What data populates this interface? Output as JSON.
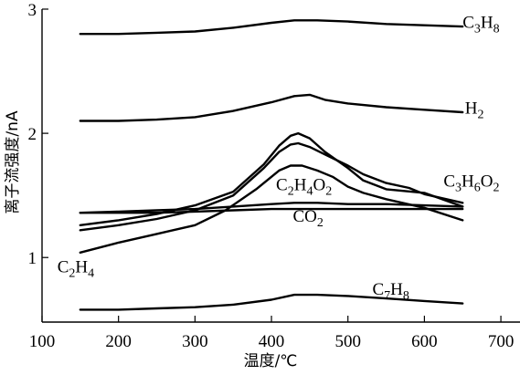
{
  "chart_data": {
    "type": "line",
    "xlabel": "温度/℃",
    "ylabel": "离子流强度/nA",
    "xlim": [
      100,
      725
    ],
    "ylim": [
      0.48,
      3.0
    ],
    "xticks": [
      100,
      200,
      300,
      400,
      500,
      600,
      700
    ],
    "yticks": [
      1,
      2,
      3
    ],
    "series": [
      {
        "name": "C3H8",
        "label_parts": [
          [
            "C",
            ""
          ],
          [
            "3",
            "sub"
          ],
          [
            "H",
            ""
          ],
          [
            "8",
            "sub"
          ]
        ],
        "points": [
          [
            150,
            2.8
          ],
          [
            200,
            2.8
          ],
          [
            250,
            2.81
          ],
          [
            300,
            2.82
          ],
          [
            350,
            2.85
          ],
          [
            400,
            2.89
          ],
          [
            430,
            2.91
          ],
          [
            460,
            2.91
          ],
          [
            500,
            2.9
          ],
          [
            550,
            2.88
          ],
          [
            600,
            2.87
          ],
          [
            650,
            2.86
          ]
        ]
      },
      {
        "name": "H2",
        "label_parts": [
          [
            "H",
            ""
          ],
          [
            "2",
            "sub"
          ]
        ],
        "points": [
          [
            150,
            2.1
          ],
          [
            200,
            2.1
          ],
          [
            250,
            2.11
          ],
          [
            300,
            2.13
          ],
          [
            350,
            2.18
          ],
          [
            400,
            2.25
          ],
          [
            430,
            2.3
          ],
          [
            450,
            2.31
          ],
          [
            470,
            2.27
          ],
          [
            500,
            2.24
          ],
          [
            550,
            2.21
          ],
          [
            600,
            2.19
          ],
          [
            650,
            2.17
          ]
        ]
      },
      {
        "name": "C2H4O2",
        "label_parts": [
          [
            "C",
            ""
          ],
          [
            "2",
            "sub"
          ],
          [
            "H",
            ""
          ],
          [
            "4",
            "sub"
          ],
          [
            "O",
            ""
          ],
          [
            "2",
            "sub"
          ]
        ],
        "points": [
          [
            150,
            1.26
          ],
          [
            200,
            1.3
          ],
          [
            250,
            1.35
          ],
          [
            300,
            1.42
          ],
          [
            350,
            1.53
          ],
          [
            390,
            1.75
          ],
          [
            410,
            1.9
          ],
          [
            425,
            1.98
          ],
          [
            435,
            2.0
          ],
          [
            450,
            1.96
          ],
          [
            470,
            1.85
          ],
          [
            500,
            1.72
          ],
          [
            520,
            1.62
          ],
          [
            550,
            1.55
          ],
          [
            600,
            1.52
          ],
          [
            650,
            1.41
          ]
        ]
      },
      {
        "name": "C2H4O2-b",
        "label_parts": [],
        "points": [
          [
            150,
            1.22
          ],
          [
            200,
            1.26
          ],
          [
            250,
            1.31
          ],
          [
            300,
            1.38
          ],
          [
            350,
            1.5
          ],
          [
            390,
            1.72
          ],
          [
            410,
            1.85
          ],
          [
            425,
            1.91
          ],
          [
            435,
            1.92
          ],
          [
            450,
            1.89
          ],
          [
            470,
            1.83
          ],
          [
            500,
            1.74
          ],
          [
            520,
            1.67
          ],
          [
            550,
            1.6
          ],
          [
            580,
            1.56
          ],
          [
            600,
            1.51
          ],
          [
            650,
            1.44
          ]
        ]
      },
      {
        "name": "C3H6O2",
        "label_parts": [
          [
            "C",
            ""
          ],
          [
            "3",
            "sub"
          ],
          [
            "H",
            ""
          ],
          [
            "6",
            "sub"
          ],
          [
            "O",
            ""
          ],
          [
            "2",
            "sub"
          ]
        ],
        "points": [
          [
            150,
            1.04
          ],
          [
            200,
            1.12
          ],
          [
            250,
            1.19
          ],
          [
            300,
            1.26
          ],
          [
            340,
            1.38
          ],
          [
            380,
            1.55
          ],
          [
            410,
            1.7
          ],
          [
            425,
            1.74
          ],
          [
            440,
            1.74
          ],
          [
            460,
            1.7
          ],
          [
            480,
            1.65
          ],
          [
            500,
            1.57
          ],
          [
            520,
            1.52
          ],
          [
            550,
            1.47
          ],
          [
            600,
            1.4
          ],
          [
            650,
            1.3
          ]
        ]
      },
      {
        "name": "CO2",
        "label_parts": [
          [
            "CO",
            ""
          ],
          [
            "2",
            "sub"
          ]
        ],
        "points": [
          [
            150,
            1.36
          ],
          [
            200,
            1.37
          ],
          [
            250,
            1.38
          ],
          [
            300,
            1.39
          ],
          [
            350,
            1.41
          ],
          [
            400,
            1.43
          ],
          [
            430,
            1.44
          ],
          [
            460,
            1.44
          ],
          [
            500,
            1.43
          ],
          [
            550,
            1.43
          ],
          [
            600,
            1.42
          ],
          [
            650,
            1.41
          ]
        ]
      },
      {
        "name": "C2H4",
        "label_parts": [],
        "points": [
          [
            150,
            1.36
          ],
          [
            200,
            1.36
          ],
          [
            250,
            1.36
          ],
          [
            300,
            1.37
          ],
          [
            350,
            1.38
          ],
          [
            400,
            1.39
          ],
          [
            450,
            1.39
          ],
          [
            500,
            1.39
          ],
          [
            550,
            1.39
          ],
          [
            600,
            1.39
          ],
          [
            650,
            1.39
          ]
        ]
      },
      {
        "name": "C7H8",
        "label_parts": [
          [
            "C",
            ""
          ],
          [
            "7",
            "sub"
          ],
          [
            "H",
            ""
          ],
          [
            "8",
            "sub"
          ]
        ],
        "points": [
          [
            150,
            0.58
          ],
          [
            200,
            0.58
          ],
          [
            250,
            0.59
          ],
          [
            300,
            0.6
          ],
          [
            350,
            0.62
          ],
          [
            400,
            0.66
          ],
          [
            430,
            0.7
          ],
          [
            460,
            0.7
          ],
          [
            500,
            0.69
          ],
          [
            550,
            0.67
          ],
          [
            600,
            0.65
          ],
          [
            650,
            0.63
          ]
        ]
      }
    ],
    "labels": [
      {
        "series": "C3H8",
        "x": 650,
        "y": 2.85,
        "parts": [
          [
            "C",
            ""
          ],
          [
            "3",
            "sub"
          ],
          [
            "H",
            ""
          ],
          [
            "8",
            "sub"
          ]
        ]
      },
      {
        "series": "H2",
        "x": 653,
        "y": 2.16,
        "parts": [
          [
            "H",
            ""
          ],
          [
            "2",
            "sub"
          ]
        ]
      },
      {
        "series": "C2H4O2",
        "x": 406,
        "y": 1.54,
        "parts": [
          [
            "C",
            ""
          ],
          [
            "2",
            "sub"
          ],
          [
            "H",
            ""
          ],
          [
            "4",
            "sub"
          ],
          [
            "O",
            ""
          ],
          [
            "2",
            "sub"
          ]
        ]
      },
      {
        "series": "C3H6O2",
        "x": 625,
        "y": 1.57,
        "parts": [
          [
            "C",
            ""
          ],
          [
            "3",
            "sub"
          ],
          [
            "H",
            ""
          ],
          [
            "6",
            "sub"
          ],
          [
            "O",
            ""
          ],
          [
            "2",
            "sub"
          ]
        ]
      },
      {
        "series": "CO2",
        "x": 428,
        "y": 1.29,
        "parts": [
          [
            "CO",
            ""
          ],
          [
            "2",
            "sub"
          ]
        ]
      },
      {
        "series": "C2H4",
        "x": 120,
        "y": 0.88,
        "parts": [
          [
            "C",
            ""
          ],
          [
            "2",
            "sub"
          ],
          [
            "H",
            ""
          ],
          [
            "4",
            "sub"
          ]
        ]
      },
      {
        "series": "C7H8",
        "x": 532,
        "y": 0.7,
        "parts": [
          [
            "C",
            ""
          ],
          [
            "7",
            "sub"
          ],
          [
            "H",
            ""
          ],
          [
            "8",
            "sub"
          ]
        ]
      }
    ]
  }
}
